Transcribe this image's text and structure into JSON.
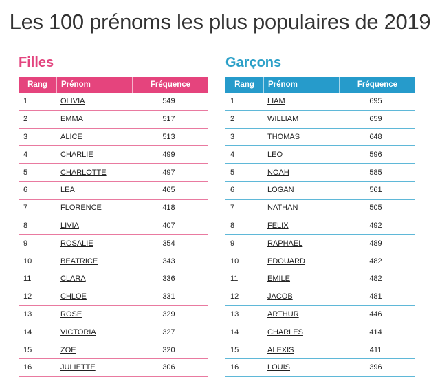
{
  "title": "Les 100 prénoms les plus populaires de 2019",
  "girls": {
    "heading": "Filles",
    "headers": {
      "rang": "Rang",
      "prenom": "Prénom",
      "freq": "Fréquence"
    },
    "rows": [
      {
        "rang": "1",
        "name": "OLIVIA",
        "freq": "549"
      },
      {
        "rang": "2",
        "name": "EMMA",
        "freq": "517"
      },
      {
        "rang": "3",
        "name": "ALICE",
        "freq": "513"
      },
      {
        "rang": "4",
        "name": "CHARLIE",
        "freq": "499"
      },
      {
        "rang": "5",
        "name": "CHARLOTTE",
        "freq": "497"
      },
      {
        "rang": "6",
        "name": "LEA",
        "freq": "465"
      },
      {
        "rang": "7",
        "name": "FLORENCE",
        "freq": "418"
      },
      {
        "rang": "8",
        "name": "LIVIA",
        "freq": "407"
      },
      {
        "rang": "9",
        "name": "ROSALIE",
        "freq": "354"
      },
      {
        "rang": "10",
        "name": "BEATRICE",
        "freq": "343"
      },
      {
        "rang": "11",
        "name": "CLARA",
        "freq": "336"
      },
      {
        "rang": "12",
        "name": "CHLOE",
        "freq": "331"
      },
      {
        "rang": "13",
        "name": "ROSE",
        "freq": "329"
      },
      {
        "rang": "14",
        "name": "VICTORIA",
        "freq": "327"
      },
      {
        "rang": "15",
        "name": "ZOE",
        "freq": "320"
      },
      {
        "rang": "16",
        "name": "JULIETTE",
        "freq": "306"
      }
    ]
  },
  "boys": {
    "heading": "Garçons",
    "headers": {
      "rang": "Rang",
      "prenom": "Prénom",
      "freq": "Fréquence"
    },
    "rows": [
      {
        "rang": "1",
        "name": "LIAM",
        "freq": "695"
      },
      {
        "rang": "2",
        "name": "WILLIAM",
        "freq": "659"
      },
      {
        "rang": "3",
        "name": "THOMAS",
        "freq": "648"
      },
      {
        "rang": "4",
        "name": "LEO",
        "freq": "596"
      },
      {
        "rang": "5",
        "name": "NOAH",
        "freq": "585"
      },
      {
        "rang": "6",
        "name": "LOGAN",
        "freq": "561"
      },
      {
        "rang": "7",
        "name": "NATHAN",
        "freq": "505"
      },
      {
        "rang": "8",
        "name": "FELIX",
        "freq": "492"
      },
      {
        "rang": "9",
        "name": "RAPHAEL",
        "freq": "489"
      },
      {
        "rang": "10",
        "name": "EDOUARD",
        "freq": "482"
      },
      {
        "rang": "11",
        "name": "EMILE",
        "freq": "482"
      },
      {
        "rang": "12",
        "name": "JACOB",
        "freq": "481"
      },
      {
        "rang": "13",
        "name": "ARTHUR",
        "freq": "446"
      },
      {
        "rang": "14",
        "name": "CHARLES",
        "freq": "414"
      },
      {
        "rang": "15",
        "name": "ALEXIS",
        "freq": "411"
      },
      {
        "rang": "16",
        "name": "LOUIS",
        "freq": "396"
      }
    ]
  },
  "colors": {
    "girls_accent": "#e5447d",
    "boys_accent": "#269bcb"
  }
}
